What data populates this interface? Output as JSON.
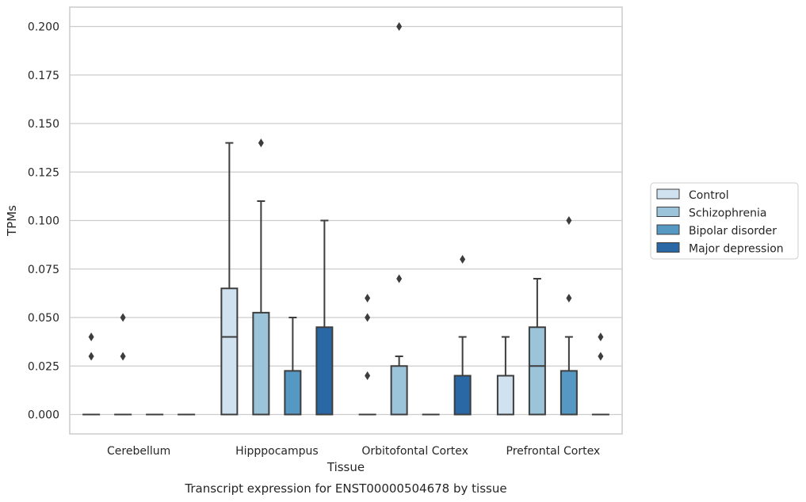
{
  "chart_data": {
    "type": "box",
    "xlabel": "Tissue",
    "ylabel": "TPMs",
    "caption": "Transcript expression for ENST00000504678 by tissue",
    "ylim": [
      -0.01,
      0.21
    ],
    "yticks": [
      "0.000",
      "0.025",
      "0.050",
      "0.075",
      "0.100",
      "0.125",
      "0.150",
      "0.175",
      "0.200"
    ],
    "grid": "horizontal",
    "legend_placement": "right",
    "categories": [
      "Cerebellum",
      "Hipppocampus",
      "Orbitofontal Cortex",
      "Prefrontal Cortex"
    ],
    "series": [
      {
        "name": "Control",
        "color": "#d0e1f0",
        "boxes": [
          {
            "q1": 0,
            "median": 0,
            "q3": 0,
            "whisker_low": 0,
            "whisker_high": 0,
            "outliers": [
              0.03,
              0.04
            ]
          },
          {
            "q1": 0,
            "median": 0.04,
            "q3": 0.065,
            "whisker_low": 0,
            "whisker_high": 0.14,
            "outliers": []
          },
          {
            "q1": 0,
            "median": 0,
            "q3": 0,
            "whisker_low": 0,
            "whisker_high": 0,
            "outliers": [
              0.02,
              0.05,
              0.06
            ]
          },
          {
            "q1": 0,
            "median": 0,
            "q3": 0.02,
            "whisker_low": 0,
            "whisker_high": 0.04,
            "outliers": []
          }
        ]
      },
      {
        "name": "Schizophrenia",
        "color": "#9bc3da",
        "boxes": [
          {
            "q1": 0,
            "median": 0,
            "q3": 0,
            "whisker_low": 0,
            "whisker_high": 0,
            "outliers": [
              0.03,
              0.05
            ]
          },
          {
            "q1": 0,
            "median": 0,
            "q3": 0.0525,
            "whisker_low": 0,
            "whisker_high": 0.11,
            "outliers": [
              0.14
            ]
          },
          {
            "q1": 0,
            "median": 0,
            "q3": 0.025,
            "whisker_low": 0,
            "whisker_high": 0.03,
            "outliers": [
              0.07,
              0.2
            ]
          },
          {
            "q1": 0,
            "median": 0.025,
            "q3": 0.045,
            "whisker_low": 0,
            "whisker_high": 0.07,
            "outliers": []
          }
        ]
      },
      {
        "name": "Bipolar disorder",
        "color": "#5698c4",
        "boxes": [
          {
            "q1": 0,
            "median": 0,
            "q3": 0,
            "whisker_low": 0,
            "whisker_high": 0,
            "outliers": []
          },
          {
            "q1": 0,
            "median": 0,
            "q3": 0.0225,
            "whisker_low": 0,
            "whisker_high": 0.05,
            "outliers": []
          },
          {
            "q1": 0,
            "median": 0,
            "q3": 0,
            "whisker_low": 0,
            "whisker_high": 0,
            "outliers": []
          },
          {
            "q1": 0,
            "median": 0,
            "q3": 0.0225,
            "whisker_low": 0,
            "whisker_high": 0.04,
            "outliers": [
              0.06,
              0.1
            ]
          }
        ]
      },
      {
        "name": "Major depression",
        "color": "#2a68a5",
        "boxes": [
          {
            "q1": 0,
            "median": 0,
            "q3": 0,
            "whisker_low": 0,
            "whisker_high": 0,
            "outliers": []
          },
          {
            "q1": 0,
            "median": 0,
            "q3": 0.045,
            "whisker_low": 0,
            "whisker_high": 0.1,
            "outliers": []
          },
          {
            "q1": 0,
            "median": 0,
            "q3": 0.02,
            "whisker_low": 0,
            "whisker_high": 0.04,
            "outliers": [
              0.08
            ]
          },
          {
            "q1": 0,
            "median": 0,
            "q3": 0,
            "whisker_low": 0,
            "whisker_high": 0,
            "outliers": [
              0.03,
              0.04
            ]
          }
        ]
      }
    ]
  }
}
